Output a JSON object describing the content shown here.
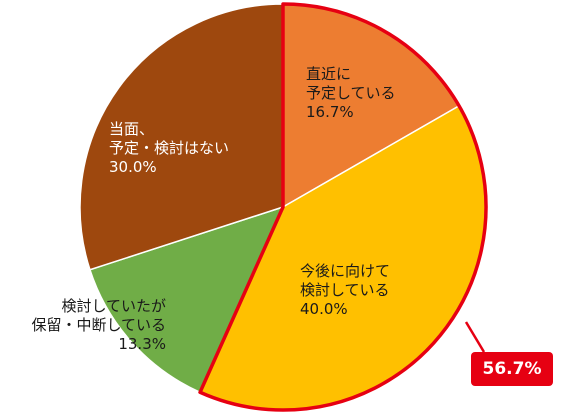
{
  "chart_data": {
    "type": "pie",
    "start_angle_deg": 0,
    "direction": "clockwise",
    "slices": [
      {
        "label_lines": [
          "直近に",
          "予定している"
        ],
        "value": 16.7,
        "value_text": "16.7%",
        "color": "#ED7D31"
      },
      {
        "label_lines": [
          "今後に向けて",
          "検討している"
        ],
        "value": 40.0,
        "value_text": "40.0%",
        "color": "#FFC000"
      },
      {
        "label_lines": [
          "検討していたが",
          "保留・中断している"
        ],
        "value": 13.3,
        "value_text": "13.3%",
        "color": "#70AD47"
      },
      {
        "label_lines": [
          "当面、",
          "予定・検討はない"
        ],
        "value": 30.0,
        "value_text": "30.0%",
        "color": "#9E480E"
      }
    ],
    "highlight": {
      "slices": [
        0,
        1
      ],
      "outline_color": "#E60012",
      "total_text": "56.7%"
    }
  }
}
